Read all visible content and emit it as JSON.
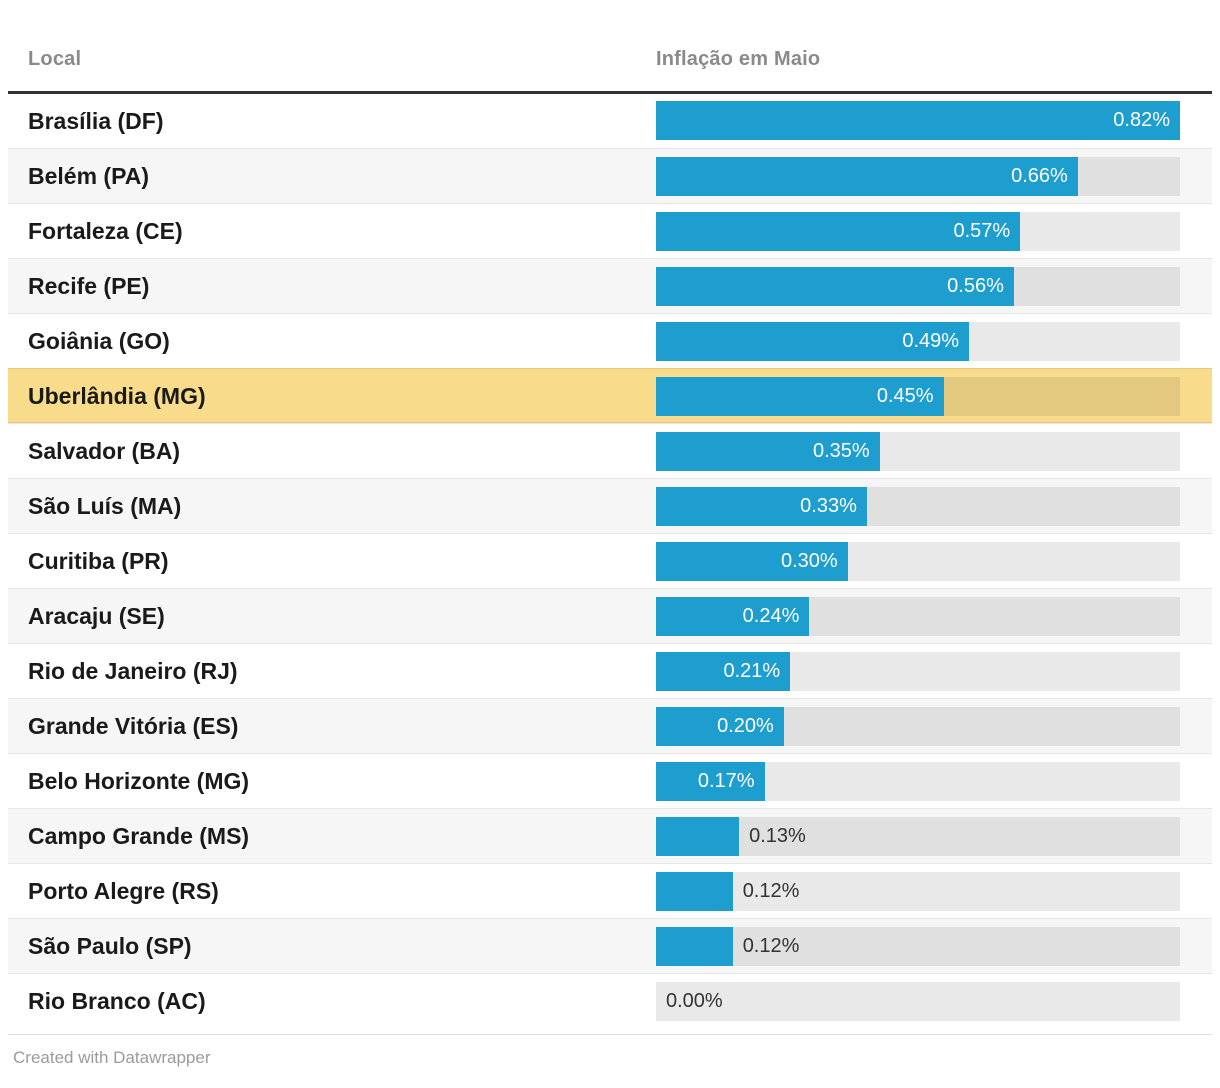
{
  "header": {
    "col_local": "Local",
    "col_value": "Inflação em Maio"
  },
  "footer": {
    "credit": "Created with Datawrapper"
  },
  "colors": {
    "bar": "#1e9ecf",
    "highlight_row_bg": "#f8dc8c",
    "alt_row_bg": "#f6f6f6",
    "track": "#e8e8e8",
    "value_label_inside": "#ffffff",
    "value_label_outside": "#333333",
    "header_text": "#8a8a8a",
    "row_label_text": "#1a1a1a",
    "top_rule": "#333333"
  },
  "chart_data": {
    "type": "bar",
    "orientation": "horizontal",
    "title": "Inflação em Maio",
    "xlabel": "Inflação em Maio",
    "ylabel": "Local",
    "unit": "%",
    "xlim": [
      0,
      0.82
    ],
    "grid": false,
    "legend": false,
    "highlighted_category": "Uberlândia (MG)",
    "categories": [
      "Brasília (DF)",
      "Belém (PA)",
      "Fortaleza (CE)",
      "Recife (PE)",
      "Goiânia (GO)",
      "Uberlândia (MG)",
      "Salvador (BA)",
      "São Luís (MA)",
      "Curitiba (PR)",
      "Aracaju (SE)",
      "Rio de Janeiro (RJ)",
      "Grande Vitória (ES)",
      "Belo Horizonte (MG)",
      "Campo Grande (MS)",
      "Porto Alegre (RS)",
      "São Paulo (SP)",
      "Rio Branco (AC)"
    ],
    "values": [
      0.82,
      0.66,
      0.57,
      0.56,
      0.49,
      0.45,
      0.35,
      0.33,
      0.3,
      0.24,
      0.21,
      0.2,
      0.17,
      0.13,
      0.12,
      0.12,
      0.0
    ],
    "value_labels": [
      "0.82%",
      "0.66%",
      "0.57%",
      "0.56%",
      "0.49%",
      "0.45%",
      "0.35%",
      "0.33%",
      "0.30%",
      "0.24%",
      "0.21%",
      "0.20%",
      "0.17%",
      "0.13%",
      "0.12%",
      "0.12%",
      "0.00%"
    ]
  }
}
